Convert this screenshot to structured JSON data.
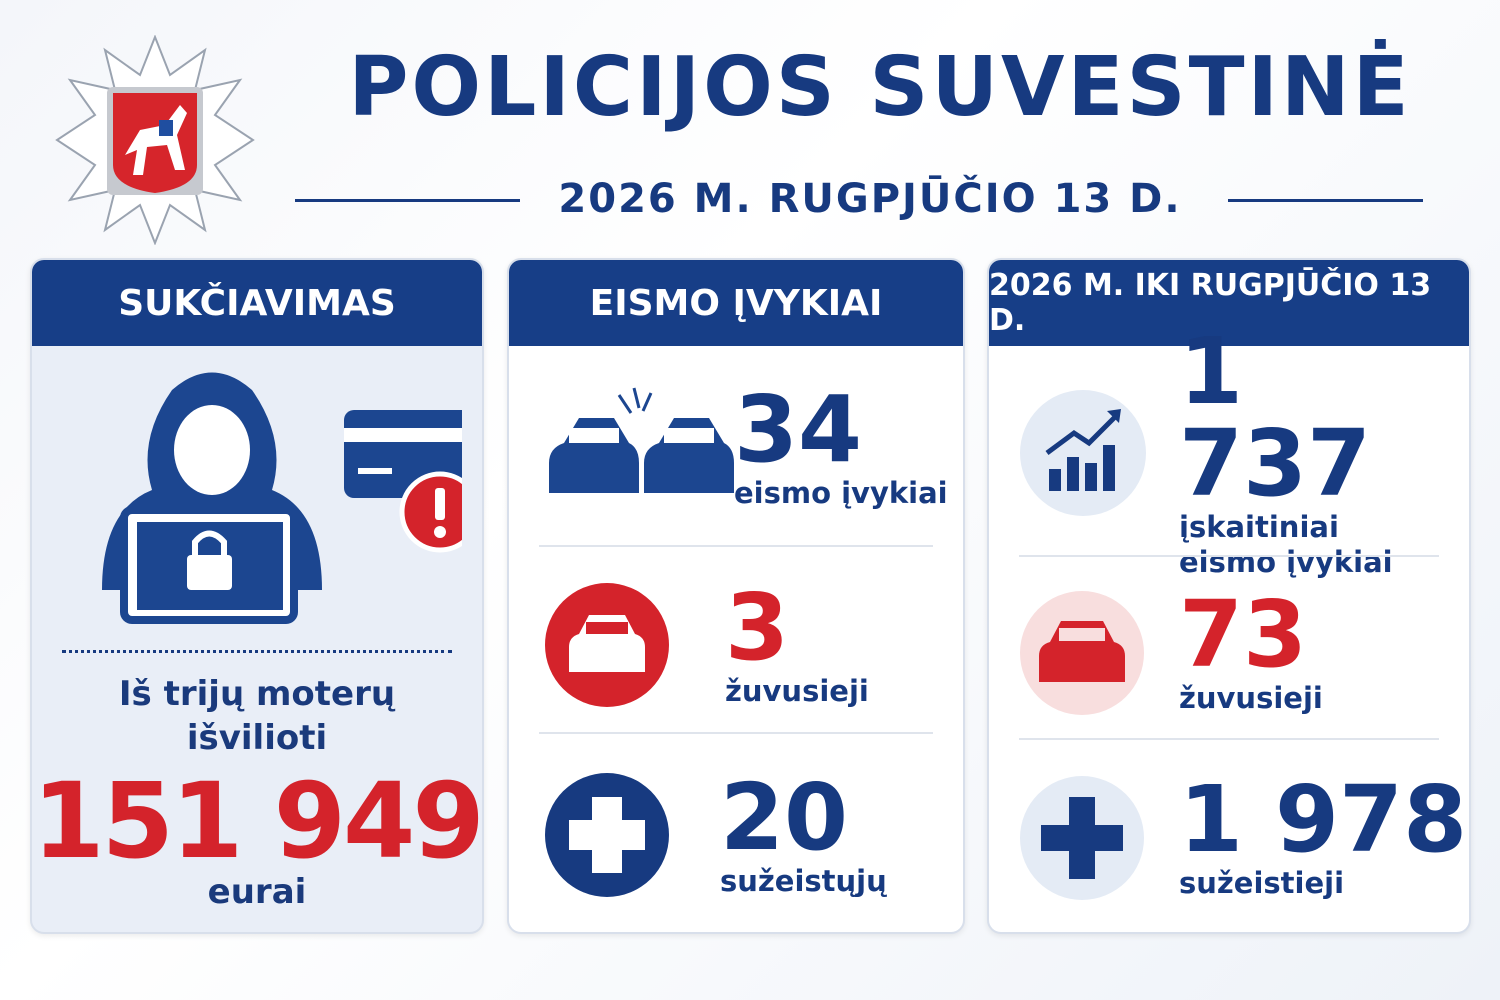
{
  "header": {
    "title": "POLICIJOS SUVESTINĖ",
    "date": "2026 M. RUGPJŪČIO 13 D."
  },
  "panels": [
    {
      "title": "SUKČIAVIMAS",
      "text": "Iš trijų moterų išvilioti",
      "amount": "151 949",
      "unit": "eurai"
    },
    {
      "title": "EISMO ĮVYKIAI",
      "items": [
        {
          "value": "34",
          "label": "eismo įvykiai"
        },
        {
          "value": "3",
          "label": "žuvusieji"
        },
        {
          "value": "20",
          "label": "sužeistųjų"
        }
      ]
    },
    {
      "title": "2026 M. IKI RUGPJŪČIO 13 D.",
      "items": [
        {
          "value": "1 737",
          "label": "įskaitiniai eismo įvykiai"
        },
        {
          "value": "73",
          "label": "žuvusieji"
        },
        {
          "value": "1 978",
          "label": "sužeistieji"
        }
      ]
    }
  ]
}
